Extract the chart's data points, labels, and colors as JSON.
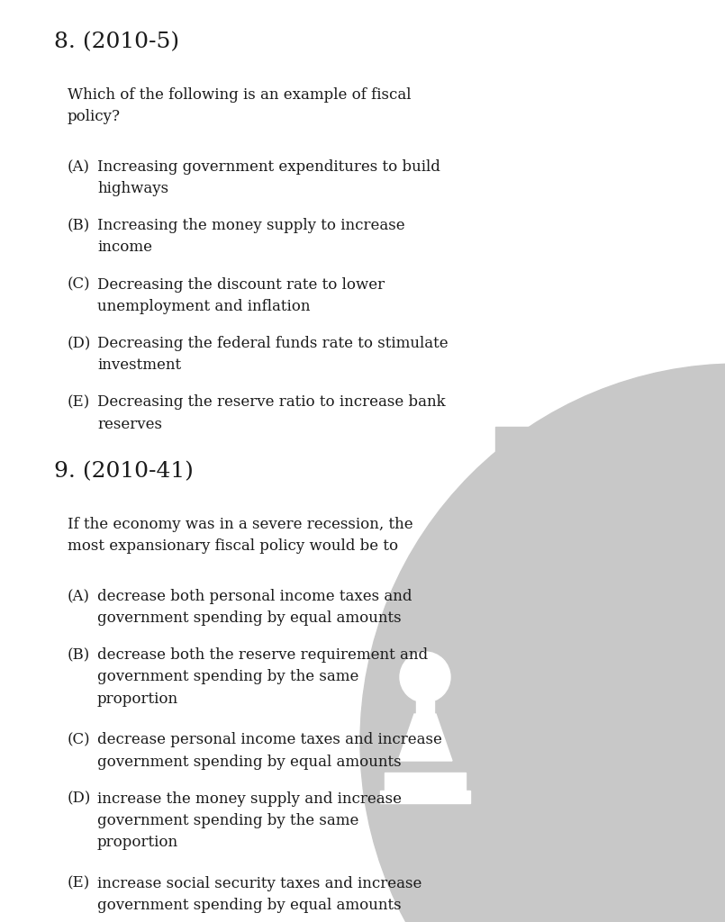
{
  "bg_color": "#ffffff",
  "text_color": "#1a1a1a",
  "q8_number": "8. (2010-5)",
  "q8_stem": "Which of the following is an example of fiscal\npolicy?",
  "q8_choices": [
    [
      "(A)",
      "Increasing government expenditures to build\nhighways"
    ],
    [
      "(B)",
      "Increasing the money supply to increase\nincome"
    ],
    [
      "(C)",
      "Decreasing the discount rate to lower\nunemployment and inflation"
    ],
    [
      "(D)",
      "Decreasing the federal funds rate to stimulate\ninvestment"
    ],
    [
      "(E)",
      "Decreasing the reserve ratio to increase bank\nreserves"
    ]
  ],
  "q9_number": "9. (2010-41)",
  "q9_stem": "If the economy was in a severe recession, the\nmost expansionary fiscal policy would be to",
  "q9_choices": [
    [
      "(A)",
      "decrease both personal income taxes and\ngovernment spending by equal amounts"
    ],
    [
      "(B)",
      "decrease both the reserve requirement and\ngovernment spending by the same\nproportion"
    ],
    [
      "(C)",
      "decrease personal income taxes and increase\ngovernment spending by equal amounts"
    ],
    [
      "(D)",
      "increase the money supply and increase\ngovernment spending by the same\nproportion"
    ],
    [
      "(E)",
      "increase social security taxes and increase\ngovernment spending by equal amounts"
    ]
  ],
  "watermark_color": "#c8c8c8",
  "fig_width": 8.05,
  "fig_height": 10.24,
  "dpi": 100
}
